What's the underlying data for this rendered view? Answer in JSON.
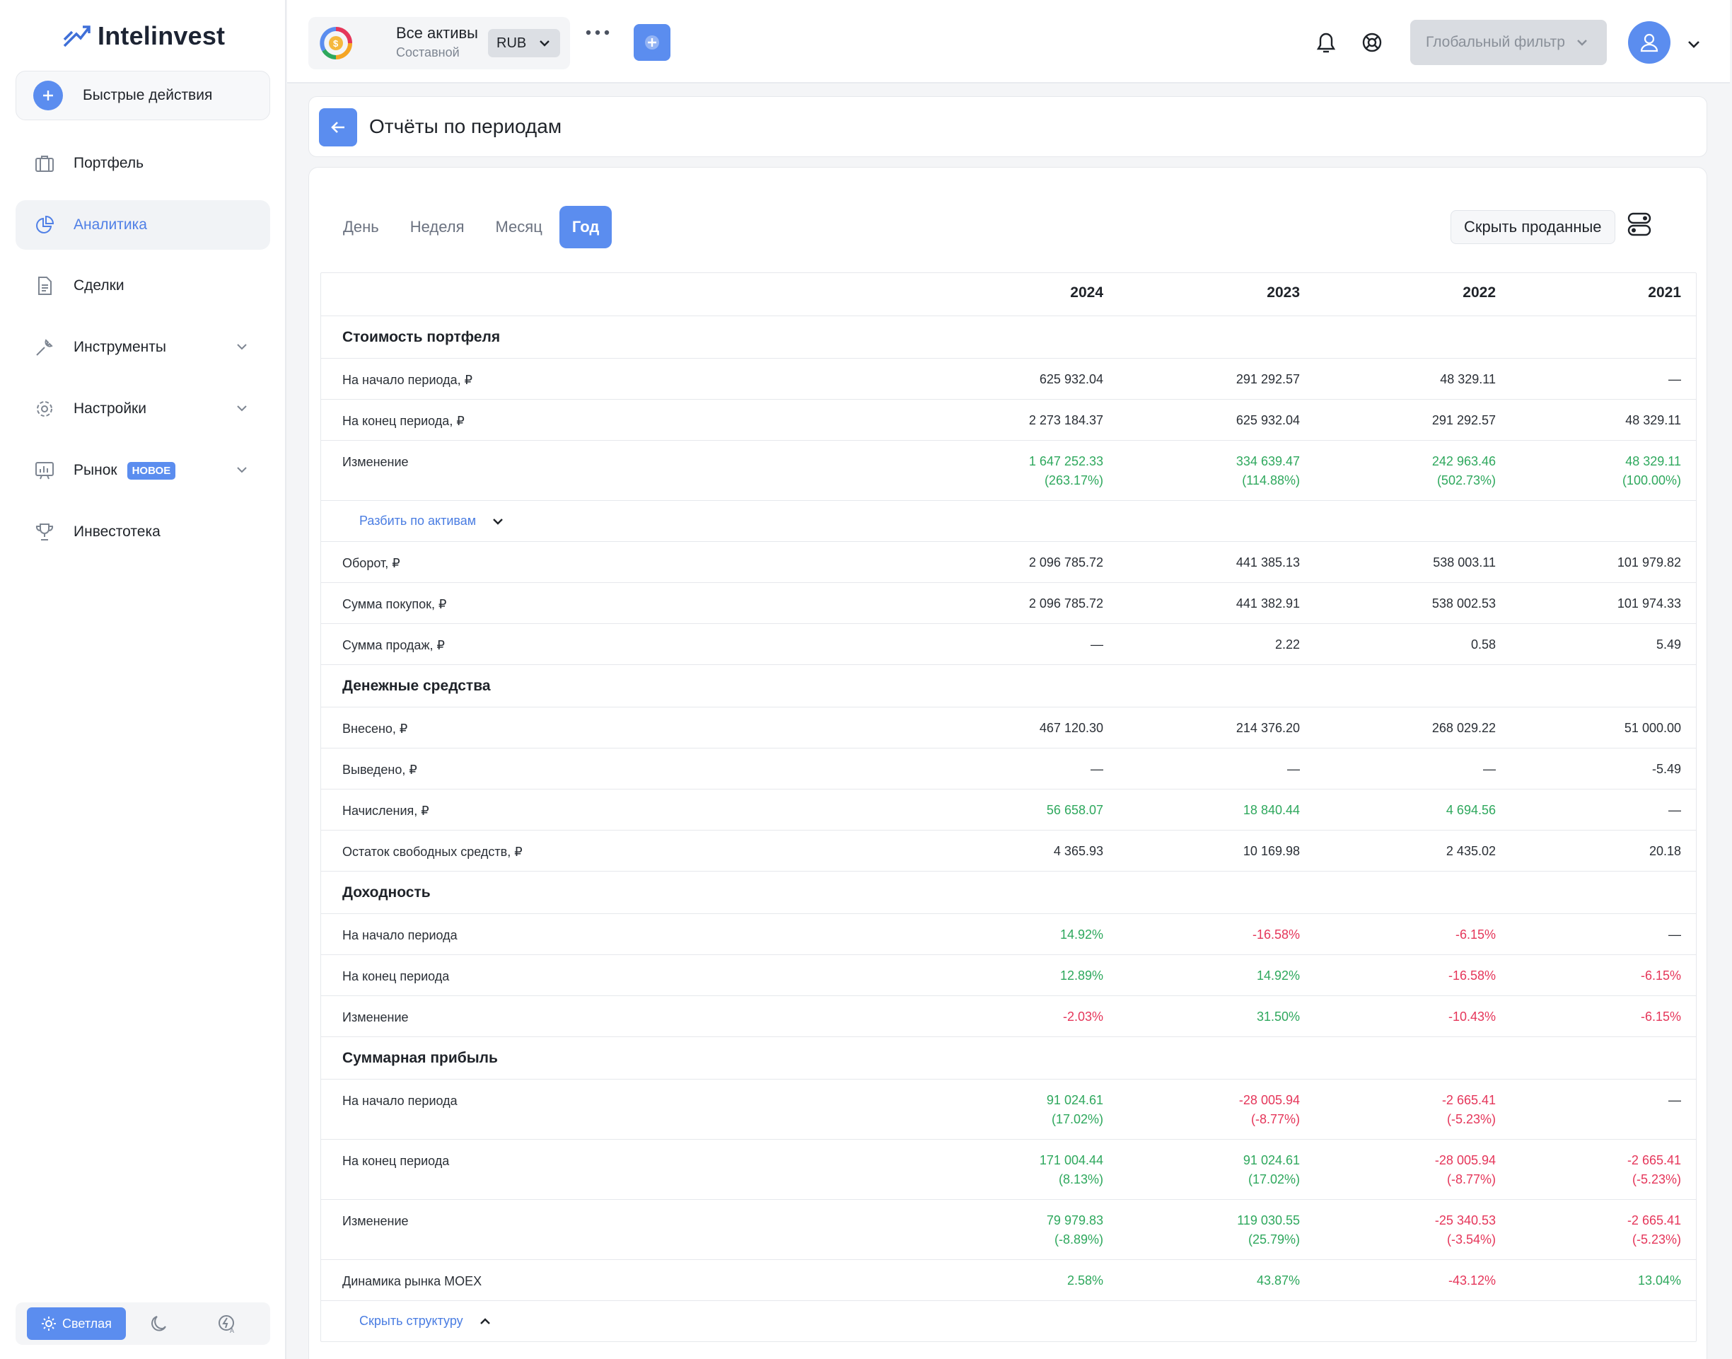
{
  "app": {
    "name": "Intelinvest"
  },
  "sidebar": {
    "quick_actions": "Быстрые действия",
    "items": [
      {
        "label": "Портфель",
        "icon": "briefcase-icon"
      },
      {
        "label": "Аналитика",
        "icon": "pie-chart-icon",
        "active": true
      },
      {
        "label": "Сделки",
        "icon": "document-icon"
      },
      {
        "label": "Инструменты",
        "icon": "wrench-icon"
      },
      {
        "label": "Настройки",
        "icon": "gear-icon"
      },
      {
        "label": "Рынок",
        "icon": "chart-board-icon",
        "badge": "НОВОЕ"
      },
      {
        "label": "Инвестотека",
        "icon": "trophy-icon"
      }
    ],
    "theme": {
      "light": "Светлая"
    }
  },
  "topbar": {
    "portfolio_title": "Все активы",
    "portfolio_subtitle": "Составной",
    "currency": "RUB",
    "global_filter": "Глобальный фильтр"
  },
  "page": {
    "title": "Отчёты по периодам",
    "tabs": [
      "День",
      "Неделя",
      "Месяц",
      "Год"
    ],
    "active_tab": "Год",
    "hide_sold": "Скрыть проданные"
  },
  "table": {
    "years": [
      "2024",
      "2023",
      "2022",
      "2021"
    ],
    "sections": {
      "portfolio_value": "Стоимость портфеля",
      "cash": "Денежные средства",
      "yield": "Доходность",
      "profit": "Суммарная прибыль"
    },
    "rows": {
      "start": {
        "label": "На начало периода, ₽",
        "v": [
          "625 932.04",
          "291 292.57",
          "48 329.11",
          "—"
        ]
      },
      "end": {
        "label": "На конец периода, ₽",
        "v": [
          "2 273 184.37",
          "625 932.04",
          "291 292.57",
          "48 329.11"
        ]
      },
      "change": {
        "label": "Изменение",
        "v": [
          "1 647 252.33",
          "334 639.47",
          "242 963.46",
          "48 329.11"
        ],
        "p": [
          "(263.17%)",
          "(114.88%)",
          "(502.73%)",
          "(100.00%)"
        ]
      },
      "split_link": "Разбить по активам",
      "turnover": {
        "label": "Оборот, ₽",
        "v": [
          "2 096 785.72",
          "441 385.13",
          "538 003.11",
          "101 979.82"
        ]
      },
      "buys": {
        "label": "Сумма покупок, ₽",
        "v": [
          "2 096 785.72",
          "441 382.91",
          "538 002.53",
          "101 974.33"
        ]
      },
      "sells": {
        "label": "Сумма продаж, ₽",
        "v": [
          "—",
          "2.22",
          "0.58",
          "5.49"
        ]
      },
      "deposited": {
        "label": "Внесено, ₽",
        "v": [
          "467 120.30",
          "214 376.20",
          "268 029.22",
          "51 000.00"
        ]
      },
      "withdrawn": {
        "label": "Выведено, ₽",
        "v": [
          "—",
          "—",
          "—",
          "-5.49"
        ]
      },
      "accruals": {
        "label": "Начисления, ₽",
        "v": [
          "56 658.07",
          "18 840.44",
          "4 694.56",
          "—"
        ]
      },
      "free_cash": {
        "label": "Остаток свободных средств, ₽",
        "v": [
          "4 365.93",
          "10 169.98",
          "2 435.02",
          "20.18"
        ]
      },
      "y_start": {
        "label": "На начало периода",
        "v": [
          "14.92%",
          "-16.58%",
          "-6.15%",
          "—"
        ]
      },
      "y_end": {
        "label": "На конец периода",
        "v": [
          "12.89%",
          "14.92%",
          "-16.58%",
          "-6.15%"
        ]
      },
      "y_change": {
        "label": "Изменение",
        "v": [
          "-2.03%",
          "31.50%",
          "-10.43%",
          "-6.15%"
        ]
      },
      "p_start": {
        "label": "На начало периода",
        "v": [
          "91 024.61",
          "-28 005.94",
          "-2 665.41",
          "—"
        ],
        "p": [
          "(17.02%)",
          "(-8.77%)",
          "(-5.23%)",
          ""
        ]
      },
      "p_end": {
        "label": "На конец периода",
        "v": [
          "171 004.44",
          "91 024.61",
          "-28 005.94",
          "-2 665.41"
        ],
        "p": [
          "(8.13%)",
          "(17.02%)",
          "(-8.77%)",
          "(-5.23%)"
        ]
      },
      "p_change": {
        "label": "Изменение",
        "v": [
          "79 979.83",
          "119 030.55",
          "-25 340.53",
          "-2 665.41"
        ],
        "p": [
          "(-8.89%)",
          "(25.79%)",
          "(-3.54%)",
          "(-5.23%)"
        ]
      },
      "moex": {
        "label": "Динамика рынка MOEX",
        "v": [
          "2.58%",
          "43.87%",
          "-43.12%",
          "13.04%"
        ]
      },
      "hide_link": "Скрыть структуру"
    }
  },
  "colors": {
    "accent": "#5b8def",
    "positive": "#2ea85d",
    "negative": "#e5365a"
  }
}
